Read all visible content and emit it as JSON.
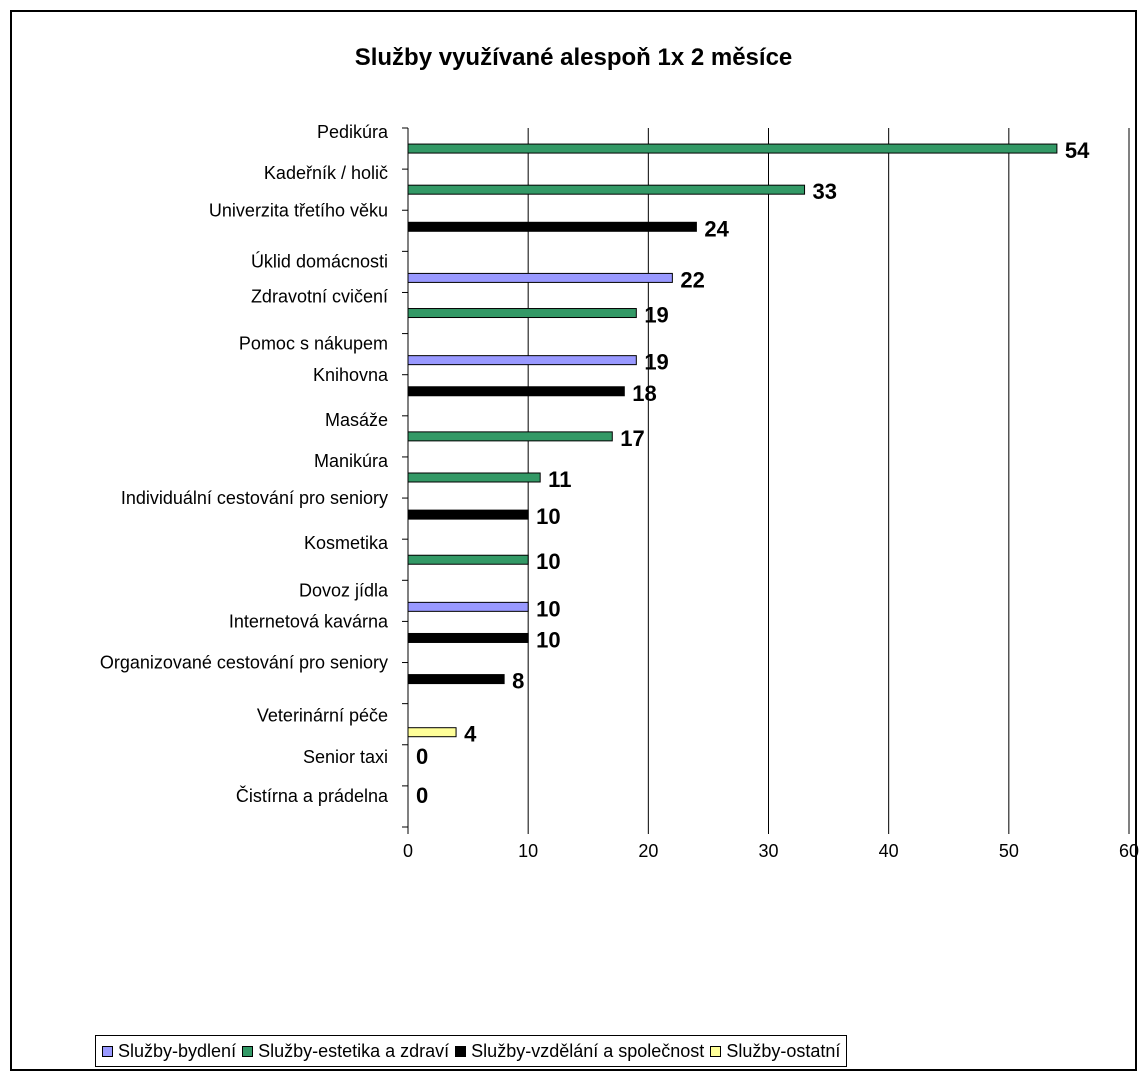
{
  "chart_data": {
    "type": "bar",
    "orientation": "horizontal",
    "title": "Služby využívané alespoň 1x 2 měsíce",
    "xlim": [
      0,
      60
    ],
    "xticks": [
      0,
      10,
      20,
      30,
      40,
      50,
      60
    ],
    "grid": true,
    "legend_position": "bottom",
    "series": [
      {
        "name": "Služby-bydlení",
        "color": "#9999FF"
      },
      {
        "name": "Služby-estetika a zdraví",
        "color": "#339966"
      },
      {
        "name": "Služby-vzdělání a společnost",
        "color": "#000000"
      },
      {
        "name": "Služby-ostatní",
        "color": "#FFFF99"
      }
    ],
    "categories": [
      {
        "label": "Pedikúra",
        "value": 54,
        "series": "Služby-estetika a zdraví",
        "value_label": "54"
      },
      {
        "label": "Kadeřník / holič",
        "value": 33,
        "series": "Služby-estetika a zdraví",
        "value_label": "33"
      },
      {
        "label": "Univerzita třetího věku",
        "value": 24,
        "series": "Služby-vzdělání a společnost",
        "value_label": "24"
      },
      {
        "label": "Úklid domácnosti",
        "value": 22,
        "series": "Služby-bydlení",
        "value_label": "22"
      },
      {
        "label": "Zdravotní cvičení",
        "value": 19,
        "series": "Služby-estetika a zdraví",
        "value_label": "19"
      },
      {
        "label": "Pomoc s nákupem",
        "value": 19,
        "series": "Služby-bydlení",
        "value_label": "19"
      },
      {
        "label": "Knihovna",
        "value": 18,
        "series": "Služby-vzdělání a společnost",
        "value_label": "18"
      },
      {
        "label": "Masáže",
        "value": 17,
        "series": "Služby-estetika a zdraví",
        "value_label": "17"
      },
      {
        "label": "Manikúra",
        "value": 11,
        "series": "Služby-estetika a zdraví",
        "value_label": "11"
      },
      {
        "label": "Individuální cestování pro seniory",
        "value": 10,
        "series": "Služby-vzdělání a společnost",
        "value_label": "10"
      },
      {
        "label": "Kosmetika",
        "value": 10,
        "series": "Služby-estetika a zdraví",
        "value_label": "10"
      },
      {
        "label": "Dovoz jídla",
        "value": 10,
        "series": "Služby-bydlení",
        "value_label": "10"
      },
      {
        "label": "Internetová kavárna",
        "value": 10,
        "series": "Služby-vzdělání a společnost",
        "value_label": "10"
      },
      {
        "label": "Organizované cestování pro seniory",
        "value": 8,
        "series": "Služby-vzdělání a společnost",
        "value_label": "8"
      },
      {
        "label": "Veterinární péče",
        "value": 4,
        "series": "Služby-ostatní",
        "value_label": "4"
      },
      {
        "label": "Senior taxi",
        "value": 0,
        "series": "Služby-ostatní",
        "value_label": "0"
      },
      {
        "label": "Čistírna a prádelna",
        "value": 0,
        "series": "Služby-bydlení",
        "value_label": "0"
      }
    ]
  }
}
